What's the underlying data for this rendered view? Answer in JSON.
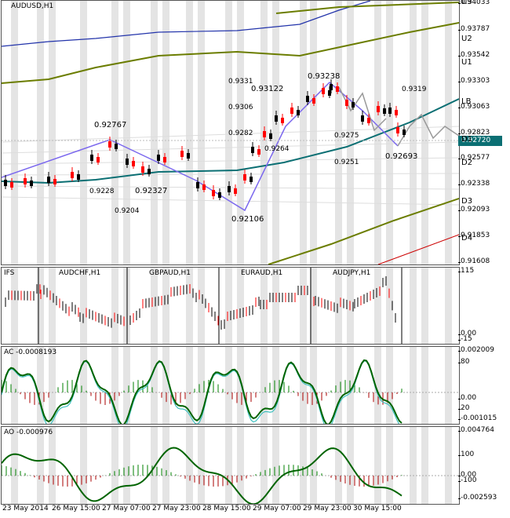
{
  "main": {
    "title": "AUDUSD,H1",
    "price_axis": [
      "0.94033",
      "0.93787",
      "0.93542",
      "0.93303",
      "0.93063",
      "0.92823",
      "0.92577",
      "0.92338",
      "0.92093",
      "0.91853",
      "0.91608"
    ],
    "current_price": "0.92720",
    "level_labels": [
      "U3",
      "U2",
      "U1",
      "LB",
      "D1",
      "D2",
      "D3",
      "D4"
    ],
    "swing_labels": [
      "0.92767",
      "0.92327",
      "0.92106",
      "0.93122",
      "0.93238",
      "0.92693"
    ],
    "minor_labels": [
      "0.9331",
      "0.9306",
      "0.9282",
      "0.9264",
      "0.9228",
      "0.9204",
      "0.9319",
      "0.9275",
      "0.9251"
    ]
  },
  "ifs": {
    "title": "IFS",
    "symbols": [
      "AUDCHF,H1",
      "GBPAUD,H1",
      "EURAUD,H1",
      "AUDJPY,H1"
    ],
    "axis": [
      "115",
      "0.00",
      "-15"
    ]
  },
  "ac": {
    "title": "AC -0.0008193",
    "axis": [
      "0.002009",
      "80",
      "0.00",
      "20",
      "-0.001015"
    ]
  },
  "ao": {
    "title": "AO -0.000976",
    "axis": [
      "0.004764",
      "100",
      "0.00",
      "-100",
      "-0.002593"
    ]
  },
  "time_axis": [
    "23 May 2014",
    "26 May 15:00",
    "27 May 07:00",
    "27 May 23:00",
    "28 May 15:00",
    "29 May 07:00",
    "29 May 23:00",
    "30 May 15:00"
  ],
  "colors": {
    "bull": "#000000",
    "bear": "#ff0000",
    "lb": "#0b6f73",
    "band": "#6b7d00",
    "zig": "#7b68ee",
    "ac_line": "#006400",
    "ac_fast": "#40c0c0"
  }
}
